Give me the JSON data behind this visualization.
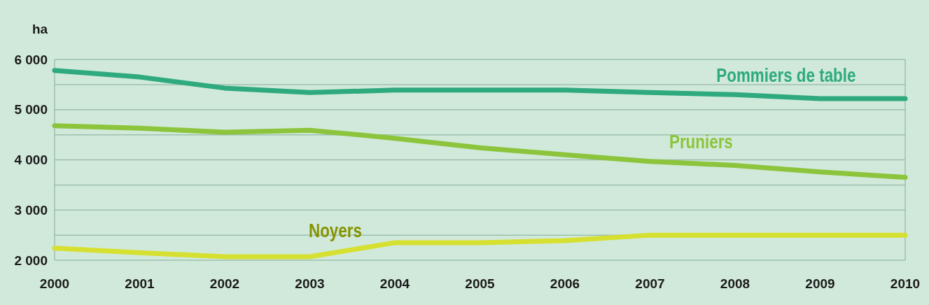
{
  "chart_data": {
    "type": "line",
    "ylabel": "ha",
    "x": [
      2000,
      2001,
      2002,
      2003,
      2004,
      2005,
      2006,
      2007,
      2008,
      2009,
      2010
    ],
    "xlim": [
      2000,
      2010
    ],
    "xticks": [
      2000,
      2001,
      2002,
      2003,
      2004,
      2005,
      2006,
      2007,
      2008,
      2009,
      2010
    ],
    "ylim": [
      2000,
      6000
    ],
    "yticks": [
      {
        "value": 2000,
        "label": "2 000"
      },
      {
        "value": 2500,
        "label": null
      },
      {
        "value": 3000,
        "label": "3 000"
      },
      {
        "value": 3500,
        "label": null
      },
      {
        "value": 4000,
        "label": "4 000"
      },
      {
        "value": 4500,
        "label": null
      },
      {
        "value": 5000,
        "label": "5 000"
      },
      {
        "value": 5500,
        "label": null
      },
      {
        "value": 6000,
        "label": "6 000"
      }
    ],
    "grid": "y",
    "marker": "none",
    "line_style": "solid",
    "series": [
      {
        "name": "Pommiers de table",
        "color": "#2eaa7e",
        "values": [
          5780,
          5650,
          5430,
          5340,
          5390,
          5390,
          5390,
          5340,
          5300,
          5220,
          5220
        ]
      },
      {
        "name": "Pruniers",
        "color": "#8cc43c",
        "values": [
          4680,
          4630,
          4550,
          4590,
          4430,
          4240,
          4100,
          3970,
          3890,
          3760,
          3650
        ]
      },
      {
        "name": "Noyers",
        "color": "#d6e030",
        "values": [
          2240,
          2150,
          2070,
          2070,
          2350,
          2350,
          2390,
          2500,
          2500,
          2500,
          2500
        ]
      }
    ]
  }
}
